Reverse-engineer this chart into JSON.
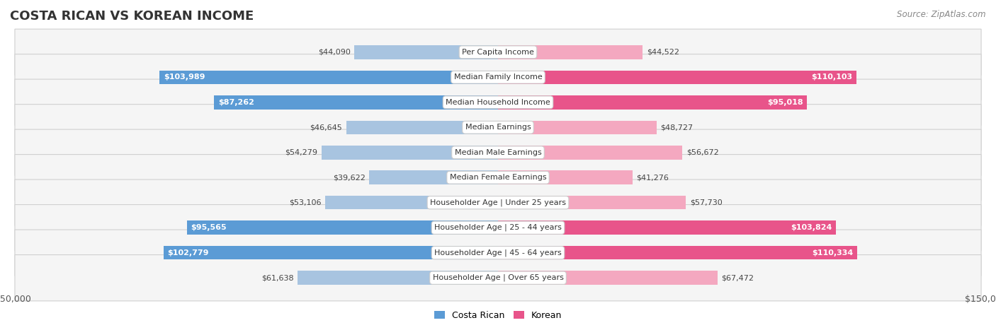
{
  "title": "COSTA RICAN VS KOREAN INCOME",
  "source": "Source: ZipAtlas.com",
  "categories": [
    "Per Capita Income",
    "Median Family Income",
    "Median Household Income",
    "Median Earnings",
    "Median Male Earnings",
    "Median Female Earnings",
    "Householder Age | Under 25 years",
    "Householder Age | 25 - 44 years",
    "Householder Age | 45 - 64 years",
    "Householder Age | Over 65 years"
  ],
  "costa_rican": [
    44090,
    103989,
    87262,
    46645,
    54279,
    39622,
    53106,
    95565,
    102779,
    61638
  ],
  "korean": [
    44522,
    110103,
    95018,
    48727,
    56672,
    41276,
    57730,
    103824,
    110334,
    67472
  ],
  "costa_rican_labels": [
    "$44,090",
    "$103,989",
    "$87,262",
    "$46,645",
    "$54,279",
    "$39,622",
    "$53,106",
    "$95,565",
    "$102,779",
    "$61,638"
  ],
  "korean_labels": [
    "$44,522",
    "$110,103",
    "$95,018",
    "$48,727",
    "$56,672",
    "$41,276",
    "$57,730",
    "$103,824",
    "$110,334",
    "$67,472"
  ],
  "max_val": 150000,
  "costa_rican_color_light": "#a8c4e0",
  "costa_rican_color_dark": "#5b9bd5",
  "korean_color_light": "#f4a8c0",
  "korean_color_dark": "#e8548a",
  "bg_color": "#ffffff",
  "row_bg": "#f5f5f5",
  "title_color": "#333333",
  "source_color": "#888888",
  "threshold": 75000
}
